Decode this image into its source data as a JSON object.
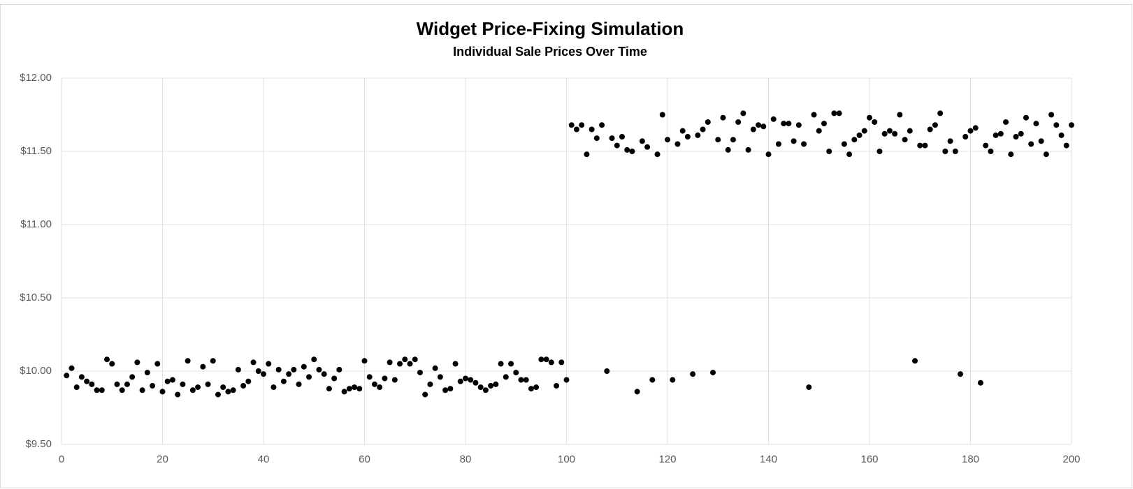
{
  "chart_data": {
    "type": "scatter",
    "title": "Widget Price-Fixing Simulation",
    "subtitle": "Individual Sale Prices Over Time",
    "color": "#000000",
    "grid": true,
    "xlim": [
      0,
      200
    ],
    "xticks": [
      0,
      20,
      40,
      60,
      80,
      100,
      120,
      140,
      160,
      180,
      200
    ],
    "ylim": [
      9.5,
      12
    ],
    "yticks": [
      {
        "value": 9.5,
        "label": "$9.50"
      },
      {
        "value": 10,
        "label": "$10.00"
      },
      {
        "value": 10.5,
        "label": "$10.50"
      },
      {
        "value": 11,
        "label": "$11.00"
      },
      {
        "value": 11.5,
        "label": "$11.50"
      },
      {
        "value": 12,
        "label": "$12.00"
      }
    ],
    "x": [
      1,
      2,
      3,
      4,
      5,
      6,
      7,
      8,
      9,
      10,
      11,
      12,
      13,
      14,
      15,
      16,
      17,
      18,
      19,
      20,
      21,
      22,
      23,
      24,
      25,
      26,
      27,
      28,
      29,
      30,
      31,
      32,
      33,
      34,
      35,
      36,
      37,
      38,
      39,
      40,
      41,
      42,
      43,
      44,
      45,
      46,
      47,
      48,
      49,
      50,
      51,
      52,
      53,
      54,
      55,
      56,
      57,
      58,
      59,
      60,
      61,
      62,
      63,
      64,
      65,
      66,
      67,
      68,
      69,
      70,
      71,
      72,
      73,
      74,
      75,
      76,
      77,
      78,
      79,
      80,
      81,
      82,
      83,
      84,
      85,
      86,
      87,
      88,
      89,
      90,
      91,
      92,
      93,
      94,
      95,
      96,
      97,
      98,
      99,
      100,
      101,
      102,
      103,
      104,
      105,
      106,
      107,
      108,
      109,
      110,
      111,
      112,
      113,
      114,
      115,
      116,
      117,
      118,
      119,
      120,
      121,
      122,
      123,
      124,
      125,
      126,
      127,
      128,
      129,
      130,
      131,
      132,
      133,
      134,
      135,
      136,
      137,
      138,
      139,
      140,
      141,
      142,
      143,
      144,
      145,
      146,
      147,
      148,
      149,
      150,
      151,
      152,
      153,
      154,
      155,
      156,
      157,
      158,
      159,
      160,
      161,
      162,
      163,
      164,
      165,
      166,
      167,
      168,
      169,
      170,
      171,
      172,
      173,
      174,
      175,
      176,
      177,
      178,
      179,
      180,
      181,
      182,
      183,
      184,
      185,
      186,
      187,
      188,
      189,
      190,
      191,
      192,
      193,
      194,
      195,
      196,
      197,
      198,
      199,
      200
    ],
    "values": [
      9.97,
      10.02,
      9.89,
      9.96,
      9.93,
      9.91,
      9.87,
      9.87,
      10.08,
      10.05,
      9.91,
      9.87,
      9.91,
      9.96,
      10.06,
      9.87,
      9.99,
      9.9,
      10.05,
      9.86,
      9.93,
      9.94,
      9.84,
      9.91,
      10.07,
      9.87,
      9.89,
      10.03,
      9.91,
      10.07,
      9.84,
      9.89,
      9.86,
      9.87,
      10.01,
      9.9,
      9.93,
      10.06,
      10.0,
      9.98,
      10.05,
      9.89,
      10.01,
      9.93,
      9.98,
      10.01,
      9.91,
      10.03,
      9.96,
      10.08,
      10.01,
      9.98,
      9.88,
      9.95,
      10.01,
      9.86,
      9.88,
      9.89,
      9.88,
      10.07,
      9.96,
      9.91,
      9.89,
      9.95,
      10.06,
      9.94,
      10.05,
      10.08,
      10.05,
      10.08,
      9.99,
      9.84,
      9.91,
      10.02,
      9.96,
      9.87,
      9.88,
      10.05,
      9.93,
      9.95,
      9.94,
      9.92,
      9.89,
      9.87,
      9.9,
      9.91,
      10.05,
      9.96,
      10.05,
      9.99,
      9.94,
      9.94,
      9.88,
      9.89,
      10.08,
      10.08,
      10.06,
      9.9,
      10.06,
      9.94,
      11.68,
      11.65,
      11.68,
      11.48,
      11.65,
      11.59,
      11.68,
      10.0,
      11.59,
      11.54,
      11.6,
      11.51,
      11.5,
      9.86,
      11.57,
      11.53,
      9.94,
      11.48,
      11.75,
      11.58,
      9.94,
      11.55,
      11.64,
      11.6,
      9.98,
      11.61,
      11.65,
      11.7,
      9.99,
      11.58,
      11.73,
      11.51,
      11.58,
      11.7,
      11.76,
      11.51,
      11.65,
      11.68,
      11.67,
      11.48,
      11.72,
      11.55,
      11.69,
      11.69,
      11.57,
      11.68,
      11.55,
      9.89,
      11.75,
      11.64,
      11.69,
      11.5,
      11.76,
      11.76,
      11.55,
      11.48,
      11.58,
      11.61,
      11.64,
      11.73,
      11.7,
      11.5,
      11.62,
      11.64,
      11.62,
      11.75,
      11.58,
      11.64,
      10.07,
      11.54,
      11.54,
      11.65,
      11.68,
      11.76,
      11.5,
      11.57,
      11.5,
      9.98,
      11.6,
      11.64,
      11.66,
      9.92,
      11.54,
      11.5,
      11.61,
      11.62,
      11.7,
      11.48,
      11.6,
      11.62,
      11.73,
      11.55,
      11.69,
      11.57,
      11.48,
      11.75,
      11.68,
      11.61,
      11.54,
      11.68
    ]
  }
}
